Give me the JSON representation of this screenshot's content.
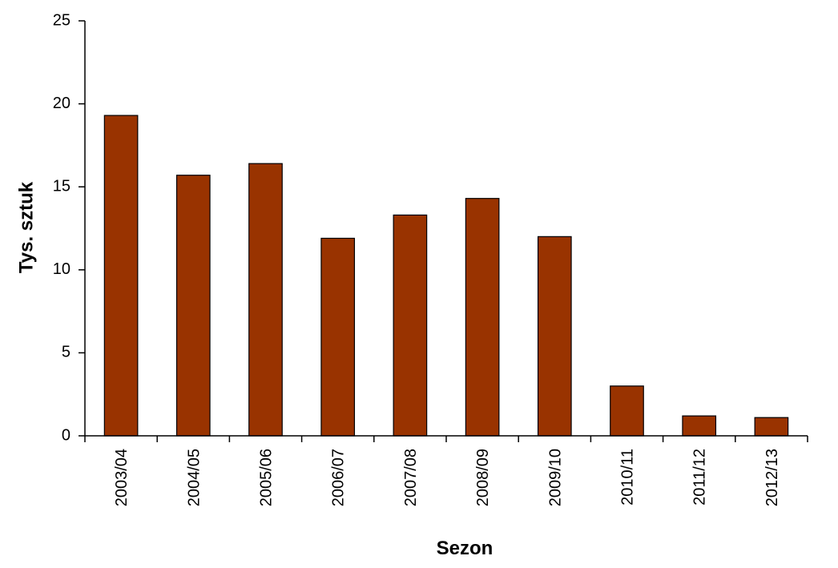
{
  "chart_data": {
    "type": "bar",
    "title": "",
    "xlabel": "Sezon",
    "ylabel": "Tys. sztuk",
    "ylim": [
      0,
      25
    ],
    "yticks": [
      0,
      5,
      10,
      15,
      20,
      25
    ],
    "categories": [
      "2003/04",
      "2004/05",
      "2005/06",
      "2006/07",
      "2007/08",
      "2008/09",
      "2009/10",
      "2010/11",
      "2011/12",
      "2012/13"
    ],
    "values": [
      19.3,
      15.7,
      16.4,
      11.9,
      13.3,
      14.3,
      12.0,
      3.0,
      1.2,
      1.1
    ],
    "bar_color": "#993300",
    "bar_outline_color": "#000000",
    "grid": false,
    "legend": "none"
  }
}
